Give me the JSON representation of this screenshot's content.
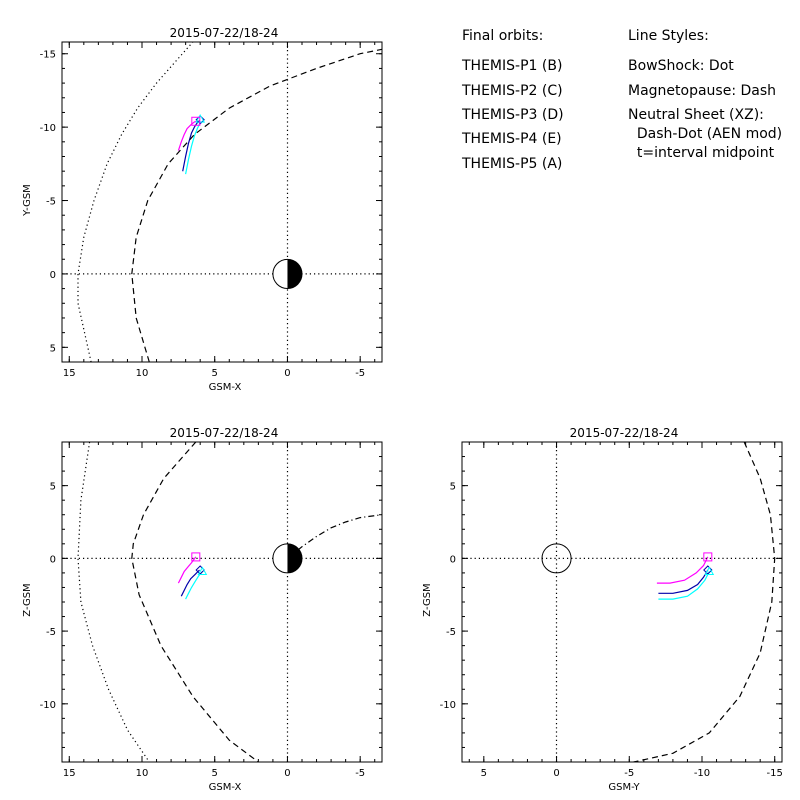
{
  "chart_data": [
    {
      "type": "line",
      "title": "2015-07-22/18-24",
      "xlabel": "GSM-X",
      "ylabel": "Y-GSM",
      "xlim": [
        15.5,
        -6.5
      ],
      "ylim": [
        6.0,
        -15.8
      ],
      "xticks": [
        "15",
        "10",
        "5",
        "0",
        "-5"
      ],
      "yticks": [
        "-15",
        "-10",
        "-5",
        "0",
        "5"
      ],
      "earth": true,
      "series": [
        {
          "label": "THEMIS-P3 (D)",
          "color": "#00ffff",
          "style": "solid",
          "x": [
            7.0,
            6.8,
            6.6,
            6.4,
            6.2,
            6.05,
            5.9
          ],
          "y": [
            -6.8,
            -7.8,
            -8.7,
            -9.4,
            -9.9,
            -10.2,
            -10.4
          ]
        },
        {
          "label": "THEMIS-P4 (E)",
          "color": "#0000aa",
          "style": "solid",
          "x": [
            7.2,
            7.0,
            6.8,
            6.6,
            6.4,
            6.2,
            6.05
          ],
          "y": [
            -7.0,
            -8.0,
            -8.9,
            -9.6,
            -10.0,
            -10.3,
            -10.45
          ]
        },
        {
          "label": "THEMIS-P5 (A)",
          "color": "#ff00ff",
          "style": "solid",
          "x": [
            7.5,
            7.3,
            7.1,
            6.9,
            6.6,
            6.4,
            6.3
          ],
          "y": [
            -8.4,
            -9.0,
            -9.5,
            -9.9,
            -10.2,
            -10.35,
            -10.4
          ]
        },
        {
          "label": "BowShock",
          "color": "#000000",
          "style": "dot",
          "x": [
            13.5,
            14.4,
            14.4,
            14.0,
            13.3,
            12.4,
            11.4,
            10.3,
            9.0,
            7.4,
            6.5
          ],
          "y": [
            6.0,
            2.0,
            0.0,
            -2.5,
            -5.0,
            -7.5,
            -9.5,
            -11.3,
            -13.0,
            -14.8,
            -15.8
          ]
        },
        {
          "label": "Magnetopause",
          "color": "#000000",
          "style": "dash",
          "x": [
            9.5,
            10.4,
            10.7,
            10.4,
            9.6,
            8.2,
            6.4,
            4.0,
            1.2,
            -2.0,
            -5.0,
            -6.5
          ],
          "y": [
            6.0,
            3.0,
            0.0,
            -2.5,
            -5.0,
            -7.5,
            -9.5,
            -11.3,
            -12.8,
            -14.0,
            -15.0,
            -15.3
          ]
        },
        {
          "label": "axes-origin",
          "color": "#000000",
          "style": "dot",
          "x": [
            15.5,
            -6.5
          ],
          "y": [
            0,
            0
          ]
        },
        {
          "label": "axes-origin-v",
          "color": "#000000",
          "style": "dot",
          "x": [
            0,
            0
          ],
          "y": [
            6.0,
            -15.8
          ]
        }
      ],
      "markers": [
        {
          "shape": "diamond",
          "color": "#0000aa",
          "x": 6.0,
          "y": -10.5
        },
        {
          "shape": "triangle",
          "color": "#00ffff",
          "x": 6.0,
          "y": -10.55
        },
        {
          "shape": "square",
          "color": "#ff00ff",
          "x": 6.3,
          "y": -10.4
        }
      ]
    },
    {
      "type": "line",
      "title": "2015-07-22/18-24",
      "xlabel": "GSM-X",
      "ylabel": "Z-GSM",
      "xlim": [
        15.5,
        -6.5
      ],
      "ylim": [
        -14.0,
        8.0
      ],
      "xticks": [
        "15",
        "10",
        "5",
        "0",
        "-5"
      ],
      "yticks": [
        "5",
        "0",
        "-5",
        "-10"
      ],
      "earth": true,
      "series": [
        {
          "label": "THEMIS-P3 (D)",
          "color": "#00ffff",
          "style": "solid",
          "x": [
            7.0,
            6.8,
            6.6,
            6.35,
            6.1,
            5.85
          ],
          "y": [
            -2.8,
            -2.4,
            -2.0,
            -1.6,
            -1.2,
            -0.9
          ]
        },
        {
          "label": "THEMIS-P4 (E)",
          "color": "#0000aa",
          "style": "solid",
          "x": [
            7.3,
            7.1,
            6.9,
            6.65,
            6.35,
            6.05
          ],
          "y": [
            -2.6,
            -2.2,
            -1.8,
            -1.4,
            -1.1,
            -0.8
          ]
        },
        {
          "label": "THEMIS-P5 (A)",
          "color": "#ff00ff",
          "style": "solid",
          "x": [
            7.5,
            7.3,
            7.1,
            6.85,
            6.6,
            6.3
          ],
          "y": [
            -1.7,
            -1.3,
            -0.9,
            -0.6,
            -0.3,
            0.1
          ]
        },
        {
          "label": "BowShock",
          "color": "#000000",
          "style": "dot",
          "x": [
            13.6,
            14.2,
            14.4,
            14.2,
            13.4,
            12.3,
            11.0,
            9.5
          ],
          "y": [
            8.0,
            4.0,
            0.0,
            -3.0,
            -6.0,
            -9.0,
            -11.8,
            -14.0
          ]
        },
        {
          "label": "Magnetopause",
          "color": "#000000",
          "style": "dash",
          "x": [
            6.3,
            8.5,
            9.9,
            10.6,
            10.7,
            10.2,
            8.7,
            6.5,
            4.0,
            2.0
          ],
          "y": [
            8.0,
            5.5,
            3.0,
            1.0,
            0.0,
            -2.5,
            -6.0,
            -9.5,
            -12.5,
            -14.0
          ]
        },
        {
          "label": "NeutralSheet",
          "color": "#000000",
          "style": "dashdot",
          "x": [
            0.0,
            -1.0,
            -2.0,
            -3.0,
            -4.0,
            -5.0,
            -6.5
          ],
          "y": [
            0.0,
            0.8,
            1.5,
            2.1,
            2.5,
            2.8,
            3.0
          ]
        },
        {
          "label": "axes-origin",
          "color": "#000000",
          "style": "dot",
          "x": [
            15.5,
            -6.5
          ],
          "y": [
            0,
            0
          ]
        },
        {
          "label": "axes-origin-v",
          "color": "#000000",
          "style": "dot",
          "x": [
            0,
            0
          ],
          "y": [
            -14.0,
            8.0
          ]
        }
      ],
      "markers": [
        {
          "shape": "diamond",
          "color": "#0000aa",
          "x": 6.0,
          "y": -0.8
        },
        {
          "shape": "triangle",
          "color": "#00ffff",
          "x": 5.85,
          "y": -0.9
        },
        {
          "shape": "square",
          "color": "#ff00ff",
          "x": 6.3,
          "y": 0.1
        }
      ]
    },
    {
      "type": "line",
      "title": "2015-07-22/18-24",
      "xlabel": "GSM-Y",
      "ylabel": "Z-GSM",
      "xlim": [
        6.5,
        -15.5
      ],
      "ylim": [
        -14.0,
        8.0
      ],
      "xticks": [
        "5",
        "0",
        "-5",
        "-10",
        "-15"
      ],
      "yticks": [
        "5",
        "0",
        "-5",
        "-10"
      ],
      "earth": false,
      "series": [
        {
          "label": "THEMIS-P3 (D)",
          "color": "#00ffff",
          "style": "solid",
          "x": [
            -7.0,
            -8.0,
            -9.0,
            -9.7,
            -10.2,
            -10.5
          ],
          "y": [
            -2.8,
            -2.8,
            -2.6,
            -2.1,
            -1.5,
            -0.9
          ]
        },
        {
          "label": "THEMIS-P4 (E)",
          "color": "#0000aa",
          "style": "solid",
          "x": [
            -7.0,
            -8.0,
            -9.0,
            -9.7,
            -10.1,
            -10.4
          ],
          "y": [
            -2.4,
            -2.4,
            -2.2,
            -1.8,
            -1.3,
            -0.8
          ]
        },
        {
          "label": "THEMIS-P5 (A)",
          "color": "#ff00ff",
          "style": "solid",
          "x": [
            -6.9,
            -7.8,
            -8.8,
            -9.6,
            -10.1,
            -10.4
          ],
          "y": [
            -1.7,
            -1.7,
            -1.5,
            -1.0,
            -0.5,
            0.1
          ]
        },
        {
          "label": "Magnetopause",
          "color": "#000000",
          "style": "dash",
          "x": [
            -12.9,
            -14.0,
            -14.7,
            -15.0,
            -14.8,
            -14.0,
            -12.6,
            -10.5,
            -8.0,
            -5.3
          ],
          "y": [
            8.0,
            5.5,
            3.0,
            0.0,
            -3.0,
            -6.5,
            -9.5,
            -12.0,
            -13.4,
            -14.0
          ]
        },
        {
          "label": "axes-origin",
          "color": "#000000",
          "style": "dot",
          "x": [
            6.5,
            -15.5
          ],
          "y": [
            0,
            0
          ]
        },
        {
          "label": "axes-origin-v",
          "color": "#000000",
          "style": "dot",
          "x": [
            0,
            0
          ],
          "y": [
            -14.0,
            8.0
          ]
        }
      ],
      "markers": [
        {
          "shape": "diamond",
          "color": "#0000aa",
          "x": -10.4,
          "y": -0.8
        },
        {
          "shape": "triangle",
          "color": "#00ffff",
          "x": -10.5,
          "y": -0.9
        },
        {
          "shape": "square",
          "color": "#ff00ff",
          "x": -10.4,
          "y": 0.1
        }
      ]
    }
  ],
  "legend": {
    "orbits_title": "Final orbits:",
    "orbits": [
      {
        "label": "THEMIS-P1 (B)",
        "color": "#ff0000"
      },
      {
        "label": "THEMIS-P2 (C)",
        "color": "#00ff00"
      },
      {
        "label": "THEMIS-P3 (D)",
        "color": "#00ffff"
      },
      {
        "label": "THEMIS-P4 (E)",
        "color": "#0000aa"
      },
      {
        "label": "THEMIS-P5 (A)",
        "color": "#ff00ff"
      }
    ],
    "styles_title": "Line Styles:",
    "styles": [
      "BowShock: Dot",
      "Magnetopause: Dash",
      "Neutral Sheet (XZ):",
      "  Dash-Dot (AEN mod)",
      "  t=interval midpoint"
    ]
  }
}
